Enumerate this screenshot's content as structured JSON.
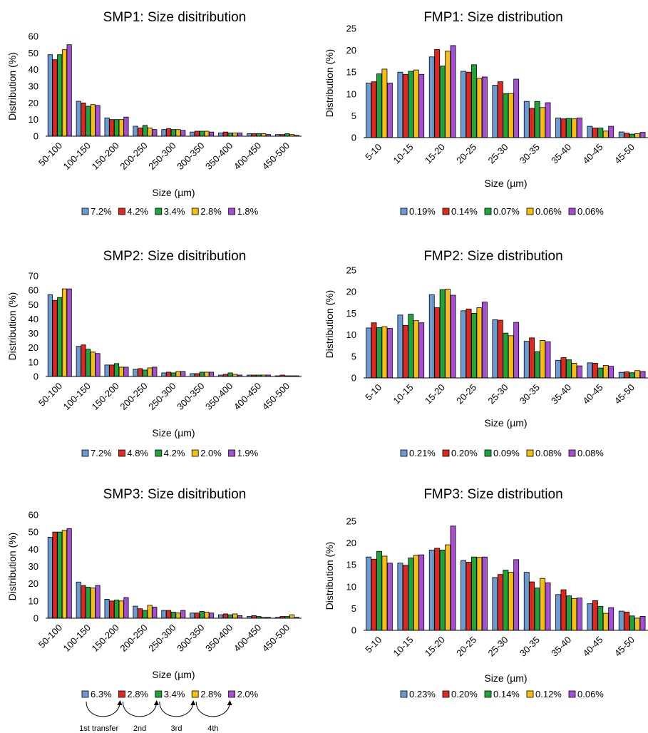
{
  "series_colors": [
    "#6a9bd4",
    "#e0281e",
    "#1ea437",
    "#f6c012",
    "#a64fd4"
  ],
  "chart_data": [
    {
      "type": "bar",
      "title": "SMP1: Size disitribution",
      "xlabel": "Size (µm)",
      "ylabel": "Distribution (%)",
      "ylim": [
        0,
        60
      ],
      "yticks": [
        "0",
        "10",
        "20",
        "30",
        "40",
        "50",
        "60"
      ],
      "categories": [
        "50-100",
        "100-150",
        "150-200",
        "200-250",
        "250-300",
        "300-350",
        "350-400",
        "400-450",
        "450-500"
      ],
      "grid": false,
      "legend_position": "bottom",
      "series": [
        {
          "name": "7.2%",
          "values": [
            49,
            21,
            11,
            6,
            4,
            2.5,
            2,
            1.5,
            1
          ]
        },
        {
          "name": "4.2%",
          "values": [
            46,
            20,
            10,
            5,
            4.5,
            3,
            2.5,
            1.5,
            1
          ]
        },
        {
          "name": "3.4%",
          "values": [
            49,
            18,
            10,
            6.5,
            4,
            3,
            2,
            1.5,
            1.5
          ]
        },
        {
          "name": "2.8%",
          "values": [
            52,
            19,
            10,
            5,
            4,
            3,
            2,
            1.5,
            1
          ]
        },
        {
          "name": "1.8%",
          "values": [
            55,
            18.5,
            11.5,
            4,
            3.5,
            2.5,
            2,
            1,
            0.5
          ]
        }
      ]
    },
    {
      "type": "bar",
      "title": "FMP1: Size distribution",
      "xlabel": "Size (µm)",
      "ylabel": "Distribution (%)",
      "ylim": [
        0,
        25
      ],
      "yticks": [
        "0",
        "5",
        "10",
        "15",
        "20",
        "25"
      ],
      "categories": [
        "5-10",
        "10-15",
        "15-20",
        "20-25",
        "25-30",
        "30-35",
        "35-40",
        "40-45",
        "45-50"
      ],
      "grid": false,
      "legend_position": "bottom",
      "series": [
        {
          "name": "0.19%",
          "values": [
            12.5,
            15,
            18.5,
            15.2,
            12,
            8.3,
            4.5,
            2.6,
            1.3
          ]
        },
        {
          "name": "0.14%",
          "values": [
            12.8,
            14.5,
            20.2,
            15,
            12.8,
            6.7,
            4.3,
            2.2,
            1
          ]
        },
        {
          "name": "0.07%",
          "values": [
            14.6,
            15.2,
            16.4,
            16.7,
            10.1,
            8.3,
            4.4,
            2.2,
            0.8
          ]
        },
        {
          "name": "0.06%",
          "values": [
            15.7,
            15.5,
            19.8,
            13.6,
            10.1,
            6.9,
            4.3,
            1.5,
            0.9
          ]
        },
        {
          "name": "0.06%",
          "values": [
            12.5,
            14.5,
            21.1,
            13.9,
            13.4,
            8,
            4.5,
            2.6,
            1.2
          ]
        }
      ]
    },
    {
      "type": "bar",
      "title": "SMP2: Size disitribution",
      "xlabel": "Size (µm)",
      "ylabel": "Distribution (%)",
      "ylim": [
        0,
        70
      ],
      "yticks": [
        "0",
        "10",
        "20",
        "30",
        "40",
        "50",
        "60",
        "70"
      ],
      "categories": [
        "50-100",
        "100-150",
        "150-200",
        "200-250",
        "250-300",
        "300-350",
        "350-400",
        "400-450",
        "450-500"
      ],
      "grid": false,
      "legend_position": "bottom",
      "series": [
        {
          "name": "7.2%",
          "values": [
            57,
            21,
            8,
            5,
            2.5,
            2,
            1,
            1,
            0.5
          ]
        },
        {
          "name": "4.8%",
          "values": [
            53,
            22,
            8,
            5.5,
            3,
            2,
            1.5,
            1,
            1
          ]
        },
        {
          "name": "4.2%",
          "values": [
            55,
            19,
            9,
            4.5,
            2.5,
            3,
            2.5,
            1,
            0.5
          ]
        },
        {
          "name": "2.0%",
          "values": [
            61,
            17,
            6.5,
            6,
            3.5,
            3,
            1.5,
            1,
            0.5
          ]
        },
        {
          "name": "1.9%",
          "values": [
            61,
            16,
            6.5,
            6.5,
            3.5,
            3,
            1,
            1,
            0.5
          ]
        }
      ]
    },
    {
      "type": "bar",
      "title": "FMP2: Size distribution",
      "xlabel": "Size (µm)",
      "ylabel": "Distribution (%)",
      "ylim": [
        0,
        25
      ],
      "yticks": [
        "0",
        "5",
        "10",
        "15",
        "20",
        "25"
      ],
      "categories": [
        "5-10",
        "10-15",
        "15-20",
        "20-25",
        "25-30",
        "30-35",
        "35-40",
        "40-45",
        "45-50"
      ],
      "grid": false,
      "legend_position": "bottom",
      "series": [
        {
          "name": "0.21%",
          "values": [
            11.6,
            14.6,
            19.3,
            15.6,
            13.5,
            8.5,
            4.1,
            3.5,
            1.3
          ]
        },
        {
          "name": "0.20%",
          "values": [
            12.8,
            12.2,
            16.3,
            16,
            13.4,
            9.3,
            4.7,
            3.4,
            1.4
          ]
        },
        {
          "name": "0.09%",
          "values": [
            11.7,
            14.8,
            20.5,
            15,
            10.4,
            6.1,
            4.2,
            2.3,
            1.2
          ]
        },
        {
          "name": "0.08%",
          "values": [
            11.9,
            13.3,
            20.6,
            16.3,
            9.8,
            8.7,
            3.4,
            2.9,
            1.7
          ]
        },
        {
          "name": "0.08%",
          "values": [
            11.5,
            12.8,
            19.2,
            17.6,
            12.9,
            8.4,
            2.8,
            2.7,
            1.5
          ]
        }
      ]
    },
    {
      "type": "bar",
      "title": "SMP3: Size disitribution",
      "xlabel": "Size (µm)",
      "ylabel": "Distribution (%)",
      "ylim": [
        0,
        60
      ],
      "yticks": [
        "0",
        "10",
        "20",
        "30",
        "40",
        "50",
        "60"
      ],
      "categories": [
        "50-100",
        "100-150",
        "150-200",
        "200-250",
        "250-300",
        "300-350",
        "350-400",
        "400-450",
        "450-500"
      ],
      "grid": false,
      "legend_position": "bottom",
      "series": [
        {
          "name": "6.3%",
          "values": [
            47,
            21,
            11,
            7,
            4.5,
            3,
            2,
            1,
            0.5
          ]
        },
        {
          "name": "2.8%",
          "values": [
            50,
            19,
            10,
            5.5,
            4.5,
            3,
            2.5,
            1.5,
            1
          ]
        },
        {
          "name": "3.4%",
          "values": [
            50,
            18,
            10.5,
            4.5,
            3.5,
            4,
            2,
            1,
            1
          ]
        },
        {
          "name": "2.8%",
          "values": [
            51,
            17.5,
            10,
            7.5,
            3,
            3.5,
            2.5,
            0.5,
            2
          ]
        },
        {
          "name": "2.0%",
          "values": [
            52,
            19,
            12,
            6.5,
            4.5,
            3,
            1.5,
            0.5,
            0.5
          ]
        }
      ],
      "annotations": [
        "1st transfer",
        "2nd",
        "3rd",
        "4th"
      ]
    },
    {
      "type": "bar",
      "title": "FMP3: Size distribution",
      "xlabel": "Size (µm)",
      "ylabel": "Distribution (%)",
      "ylim": [
        0,
        25
      ],
      "yticks": [
        "0",
        "5",
        "10",
        "15",
        "20",
        "25"
      ],
      "categories": [
        "5-10",
        "10-15",
        "15-20",
        "20-25",
        "25-30",
        "30-35",
        "35-40",
        "40-45",
        "45-50"
      ],
      "grid": false,
      "legend_position": "bottom",
      "series": [
        {
          "name": "0.23%",
          "values": [
            16.8,
            15.4,
            18.4,
            16,
            12.1,
            13.3,
            8.2,
            6.1,
            4.4
          ]
        },
        {
          "name": "0.20%",
          "values": [
            16.3,
            14.9,
            18.8,
            15.6,
            12.8,
            11.1,
            9.3,
            6.8,
            4.2
          ]
        },
        {
          "name": "0.14%",
          "values": [
            18.1,
            16.6,
            18.4,
            16.8,
            13.8,
            9.7,
            7.9,
            5.5,
            3.3
          ]
        },
        {
          "name": "0.12%",
          "values": [
            17,
            17.2,
            19.6,
            16.7,
            13.3,
            11.9,
            7.3,
            3.9,
            2.8
          ]
        },
        {
          "name": "0.06%",
          "values": [
            15.4,
            17.3,
            23.9,
            16.8,
            16.2,
            10.9,
            7.4,
            5.2,
            3.2
          ]
        }
      ]
    }
  ]
}
